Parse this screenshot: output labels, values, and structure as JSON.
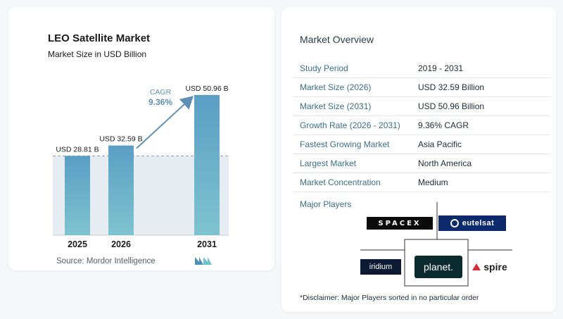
{
  "chart_data": {
    "type": "bar",
    "title": "LEO Satellite Market",
    "subtitle": "Market Size in USD Billion",
    "categories": [
      "2025",
      "2026",
      "2031"
    ],
    "values": [
      28.81,
      32.59,
      50.96
    ],
    "value_labels": [
      "USD 28.81 B",
      "USD 32.59 B",
      "USD 50.96 B"
    ],
    "annotation": {
      "label": "CAGR",
      "value": "9.36%"
    },
    "colors": {
      "bar_top": "#5a9ec5",
      "bar_bottom": "#7fc3cf",
      "shade": "#e5edf3",
      "arrow": "#5e90b6",
      "cagr": "#5e90b6"
    },
    "ylim": [
      0,
      55
    ]
  },
  "source": "Source:  Mordor Intelligence",
  "overview": {
    "title": "Market Overview",
    "rows": [
      {
        "label": "Study Period",
        "value": "2019 - 2031"
      },
      {
        "label": "Market Size (2026)",
        "value": "USD 32.59 Billion"
      },
      {
        "label": "Market Size (2031)",
        "value": "USD 50.96 Billion"
      },
      {
        "label": "Growth Rate (2026 - 2031)",
        "value": "9.36% CAGR"
      },
      {
        "label": "Fastest Growing Market",
        "value": "Asia Pacific"
      },
      {
        "label": "Largest Market",
        "value": "North America"
      },
      {
        "label": "Market Concentration",
        "value": "Medium"
      }
    ]
  },
  "players": {
    "title": "Major Players",
    "spacex": "SPACEX",
    "eutelsat": "eutelsat",
    "iridium": "iridium",
    "planet": "planet.",
    "spire": "spire"
  },
  "disclaimer": "*Disclaimer: Major Players sorted in no particular order"
}
